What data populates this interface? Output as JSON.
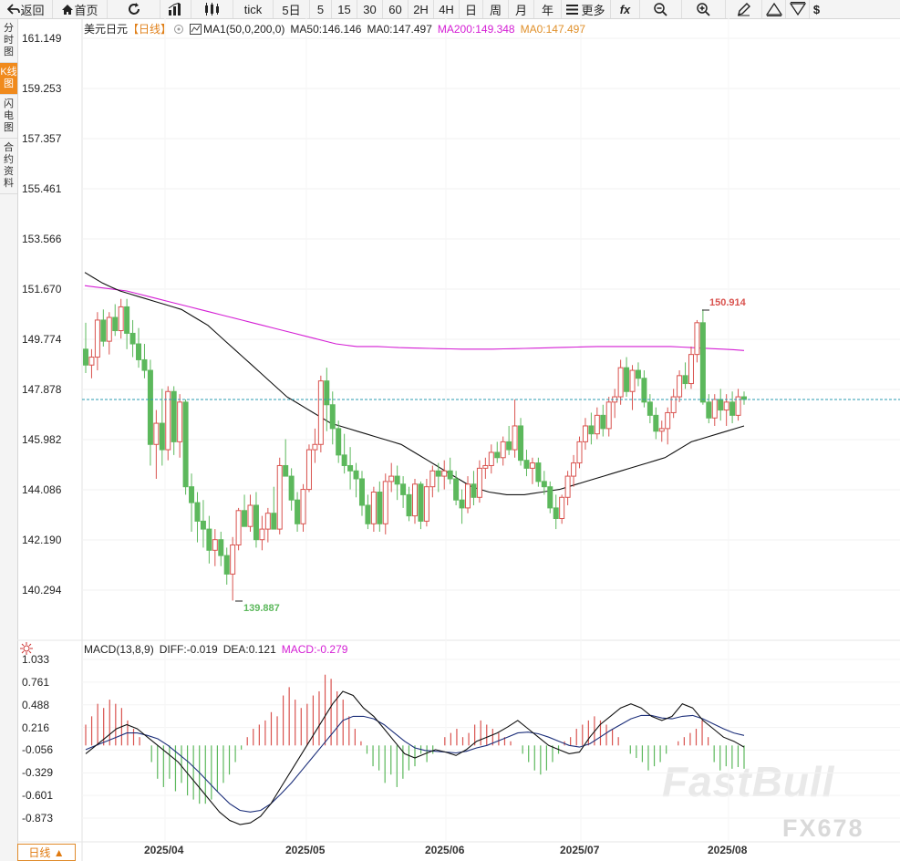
{
  "toolbar": {
    "back": "返回",
    "home": "首页",
    "tick": "tick",
    "day5": "5日",
    "m5": "5",
    "m15": "15",
    "m30": "30",
    "m60": "60",
    "h2": "2H",
    "h4": "4H",
    "day": "日",
    "week": "周",
    "month": "月",
    "year": "年",
    "more": "更多",
    "fx": "fx",
    "dollar": "$"
  },
  "sidebar": {
    "timeshare": "分时图",
    "kline": "K线图",
    "flash": "闪电图",
    "contract": "合约资料"
  },
  "legend": {
    "symbol": "美元日元",
    "period": "【日线】",
    "ma_name": "MA1(50,0,200,0)",
    "ma50": "MA50:146.146",
    "ma0": "MA0:147.497",
    "ma200": "MA200:149.348",
    "ma0b": "MA0:147.497"
  },
  "macd_legend": {
    "name": "MACD(13,8,9)",
    "diff": "DIFF:-0.019",
    "dea": "DEA:0.121",
    "macd": "MACD:-0.279"
  },
  "bottom_tab": "日线 ▲",
  "watermark": "FastBull",
  "watermark2": "FX678",
  "colors": {
    "up": "#d9534f",
    "down": "#5cb85c",
    "ma200": "#d41ed4",
    "ma50": "#111111",
    "active": "#f08a1c"
  },
  "chart_data": [
    {
      "type": "candlestick",
      "title": "美元日元 日线",
      "ylim": [
        139.3,
        161.9
      ],
      "y_ticks": [
        "161.149",
        "159.253",
        "157.357",
        "155.461",
        "153.566",
        "151.670",
        "149.774",
        "147.878",
        "145.982",
        "144.086",
        "142.190",
        "140.294"
      ],
      "x_ticks": [
        "2025/04",
        "2025/05",
        "2025/06",
        "2025/07",
        "2025/08"
      ],
      "high_label": "150.914",
      "low_label": "139.887",
      "current_price": 147.5,
      "candles": [
        {
          "o": 149.4,
          "h": 150.4,
          "l": 148.5,
          "c": 148.8
        },
        {
          "o": 148.8,
          "h": 149.4,
          "l": 148.3,
          "c": 149.1
        },
        {
          "o": 149.1,
          "h": 150.8,
          "l": 148.6,
          "c": 150.5
        },
        {
          "o": 150.5,
          "h": 150.9,
          "l": 149.5,
          "c": 149.7
        },
        {
          "o": 149.7,
          "h": 150.8,
          "l": 149.2,
          "c": 150.6
        },
        {
          "o": 150.6,
          "h": 151.1,
          "l": 149.9,
          "c": 150.1
        },
        {
          "o": 150.1,
          "h": 151.3,
          "l": 149.8,
          "c": 151.0
        },
        {
          "o": 151.0,
          "h": 151.3,
          "l": 149.4,
          "c": 150.0
        },
        {
          "o": 150.0,
          "h": 150.5,
          "l": 149.1,
          "c": 149.6
        },
        {
          "o": 149.6,
          "h": 150.2,
          "l": 148.7,
          "c": 149.0
        },
        {
          "o": 149.0,
          "h": 149.6,
          "l": 148.3,
          "c": 148.6
        },
        {
          "o": 148.6,
          "h": 149.0,
          "l": 145.0,
          "c": 145.8
        },
        {
          "o": 145.8,
          "h": 147.1,
          "l": 144.5,
          "c": 146.6
        },
        {
          "o": 146.6,
          "h": 147.9,
          "l": 145.0,
          "c": 145.6
        },
        {
          "o": 145.6,
          "h": 148.0,
          "l": 145.2,
          "c": 147.8
        },
        {
          "o": 147.8,
          "h": 148.0,
          "l": 145.4,
          "c": 145.9
        },
        {
          "o": 145.9,
          "h": 147.7,
          "l": 145.3,
          "c": 147.4
        },
        {
          "o": 147.4,
          "h": 147.5,
          "l": 143.9,
          "c": 144.2
        },
        {
          "o": 144.2,
          "h": 144.7,
          "l": 142.5,
          "c": 143.6
        },
        {
          "o": 143.6,
          "h": 144.0,
          "l": 142.1,
          "c": 142.9
        },
        {
          "o": 142.9,
          "h": 143.7,
          "l": 141.9,
          "c": 142.6
        },
        {
          "o": 142.6,
          "h": 143.1,
          "l": 141.3,
          "c": 141.8
        },
        {
          "o": 141.8,
          "h": 142.6,
          "l": 141.2,
          "c": 142.2
        },
        {
          "o": 142.2,
          "h": 142.5,
          "l": 141.2,
          "c": 141.6
        },
        {
          "o": 141.6,
          "h": 141.9,
          "l": 140.5,
          "c": 140.9
        },
        {
          "o": 140.9,
          "h": 142.3,
          "l": 139.9,
          "c": 142.0
        },
        {
          "o": 142.0,
          "h": 143.4,
          "l": 141.8,
          "c": 143.3
        },
        {
          "o": 143.3,
          "h": 143.9,
          "l": 142.7,
          "c": 142.7
        },
        {
          "o": 142.7,
          "h": 143.9,
          "l": 142.5,
          "c": 143.5
        },
        {
          "o": 143.5,
          "h": 144.0,
          "l": 141.9,
          "c": 142.2
        },
        {
          "o": 142.2,
          "h": 143.1,
          "l": 141.8,
          "c": 142.6
        },
        {
          "o": 142.6,
          "h": 143.4,
          "l": 142.1,
          "c": 143.2
        },
        {
          "o": 143.2,
          "h": 144.2,
          "l": 142.6,
          "c": 142.6
        },
        {
          "o": 142.6,
          "h": 145.3,
          "l": 142.4,
          "c": 145.0
        },
        {
          "o": 145.0,
          "h": 146.0,
          "l": 144.6,
          "c": 144.6
        },
        {
          "o": 144.6,
          "h": 144.9,
          "l": 143.3,
          "c": 143.7
        },
        {
          "o": 143.7,
          "h": 144.0,
          "l": 142.5,
          "c": 142.8
        },
        {
          "o": 142.8,
          "h": 144.3,
          "l": 142.5,
          "c": 144.1
        },
        {
          "o": 144.1,
          "h": 145.8,
          "l": 144.0,
          "c": 145.6
        },
        {
          "o": 145.6,
          "h": 146.4,
          "l": 145.1,
          "c": 145.8
        },
        {
          "o": 145.8,
          "h": 148.4,
          "l": 145.5,
          "c": 148.2
        },
        {
          "o": 148.2,
          "h": 148.7,
          "l": 146.3,
          "c": 147.3
        },
        {
          "o": 147.3,
          "h": 147.8,
          "l": 145.8,
          "c": 146.4
        },
        {
          "o": 146.4,
          "h": 146.7,
          "l": 145.1,
          "c": 145.4
        },
        {
          "o": 145.4,
          "h": 146.2,
          "l": 144.7,
          "c": 145.0
        },
        {
          "o": 145.0,
          "h": 145.7,
          "l": 144.1,
          "c": 144.8
        },
        {
          "o": 144.8,
          "h": 145.1,
          "l": 143.8,
          "c": 144.5
        },
        {
          "o": 144.5,
          "h": 144.8,
          "l": 143.1,
          "c": 143.5
        },
        {
          "o": 143.5,
          "h": 143.9,
          "l": 142.6,
          "c": 142.8
        },
        {
          "o": 142.8,
          "h": 144.2,
          "l": 142.5,
          "c": 144.0
        },
        {
          "o": 144.0,
          "h": 144.4,
          "l": 142.5,
          "c": 142.8
        },
        {
          "o": 142.8,
          "h": 144.7,
          "l": 142.4,
          "c": 144.4
        },
        {
          "o": 144.4,
          "h": 145.1,
          "l": 144.0,
          "c": 144.6
        },
        {
          "o": 144.6,
          "h": 145.0,
          "l": 143.7,
          "c": 144.3
        },
        {
          "o": 144.3,
          "h": 144.6,
          "l": 143.4,
          "c": 143.9
        },
        {
          "o": 143.9,
          "h": 144.2,
          "l": 142.9,
          "c": 143.1
        },
        {
          "o": 143.1,
          "h": 144.5,
          "l": 142.8,
          "c": 144.3
        },
        {
          "o": 144.3,
          "h": 144.4,
          "l": 142.6,
          "c": 142.9
        },
        {
          "o": 142.9,
          "h": 144.5,
          "l": 142.7,
          "c": 144.2
        },
        {
          "o": 144.2,
          "h": 145.0,
          "l": 143.8,
          "c": 144.8
        },
        {
          "o": 144.8,
          "h": 145.1,
          "l": 144.0,
          "c": 144.6
        },
        {
          "o": 144.6,
          "h": 145.2,
          "l": 144.1,
          "c": 144.8
        },
        {
          "o": 144.8,
          "h": 145.3,
          "l": 144.3,
          "c": 144.5
        },
        {
          "o": 144.5,
          "h": 144.8,
          "l": 143.5,
          "c": 143.7
        },
        {
          "o": 143.7,
          "h": 144.1,
          "l": 142.8,
          "c": 143.4
        },
        {
          "o": 143.4,
          "h": 144.6,
          "l": 143.2,
          "c": 144.3
        },
        {
          "o": 144.3,
          "h": 144.8,
          "l": 143.5,
          "c": 143.8
        },
        {
          "o": 143.8,
          "h": 145.2,
          "l": 143.6,
          "c": 144.9
        },
        {
          "o": 144.9,
          "h": 145.3,
          "l": 144.5,
          "c": 145.0
        },
        {
          "o": 145.0,
          "h": 145.8,
          "l": 144.7,
          "c": 145.5
        },
        {
          "o": 145.5,
          "h": 145.9,
          "l": 145.1,
          "c": 145.3
        },
        {
          "o": 145.3,
          "h": 146.1,
          "l": 145.0,
          "c": 145.9
        },
        {
          "o": 145.9,
          "h": 146.5,
          "l": 145.4,
          "c": 145.6
        },
        {
          "o": 145.6,
          "h": 147.5,
          "l": 145.3,
          "c": 146.5
        },
        {
          "o": 146.5,
          "h": 146.8,
          "l": 145.0,
          "c": 145.2
        },
        {
          "o": 145.2,
          "h": 145.6,
          "l": 144.6,
          "c": 144.9
        },
        {
          "o": 144.9,
          "h": 145.3,
          "l": 144.3,
          "c": 145.1
        },
        {
          "o": 145.1,
          "h": 145.3,
          "l": 144.2,
          "c": 144.4
        },
        {
          "o": 144.4,
          "h": 144.8,
          "l": 143.9,
          "c": 144.2
        },
        {
          "o": 144.2,
          "h": 144.4,
          "l": 143.2,
          "c": 143.4
        },
        {
          "o": 143.4,
          "h": 143.9,
          "l": 142.6,
          "c": 143.0
        },
        {
          "o": 143.0,
          "h": 143.9,
          "l": 142.8,
          "c": 143.8
        },
        {
          "o": 143.8,
          "h": 144.8,
          "l": 143.5,
          "c": 144.6
        },
        {
          "o": 144.6,
          "h": 145.4,
          "l": 144.2,
          "c": 145.1
        },
        {
          "o": 145.1,
          "h": 146.1,
          "l": 144.9,
          "c": 145.9
        },
        {
          "o": 145.9,
          "h": 146.8,
          "l": 145.6,
          "c": 146.5
        },
        {
          "o": 146.5,
          "h": 147.0,
          "l": 145.8,
          "c": 146.2
        },
        {
          "o": 146.2,
          "h": 147.2,
          "l": 146.0,
          "c": 146.9
        },
        {
          "o": 146.9,
          "h": 147.3,
          "l": 146.1,
          "c": 146.4
        },
        {
          "o": 146.4,
          "h": 147.6,
          "l": 146.1,
          "c": 147.4
        },
        {
          "o": 147.4,
          "h": 147.9,
          "l": 146.8,
          "c": 147.6
        },
        {
          "o": 147.6,
          "h": 149.0,
          "l": 147.3,
          "c": 148.7
        },
        {
          "o": 148.7,
          "h": 149.1,
          "l": 147.6,
          "c": 147.8
        },
        {
          "o": 147.8,
          "h": 148.8,
          "l": 147.1,
          "c": 148.6
        },
        {
          "o": 148.6,
          "h": 148.9,
          "l": 148.0,
          "c": 148.3
        },
        {
          "o": 148.3,
          "h": 148.6,
          "l": 147.2,
          "c": 147.4
        },
        {
          "o": 147.4,
          "h": 147.7,
          "l": 146.6,
          "c": 146.9
        },
        {
          "o": 146.9,
          "h": 147.2,
          "l": 146.0,
          "c": 146.3
        },
        {
          "o": 146.3,
          "h": 146.7,
          "l": 145.9,
          "c": 146.4
        },
        {
          "o": 146.4,
          "h": 147.2,
          "l": 145.8,
          "c": 147.0
        },
        {
          "o": 147.0,
          "h": 147.9,
          "l": 146.8,
          "c": 147.6
        },
        {
          "o": 147.6,
          "h": 148.6,
          "l": 147.4,
          "c": 148.4
        },
        {
          "o": 148.4,
          "h": 148.9,
          "l": 147.9,
          "c": 148.1
        },
        {
          "o": 148.1,
          "h": 149.5,
          "l": 147.9,
          "c": 149.2
        },
        {
          "o": 149.2,
          "h": 150.5,
          "l": 148.9,
          "c": 150.4
        },
        {
          "o": 150.4,
          "h": 150.9,
          "l": 147.3,
          "c": 147.4
        },
        {
          "o": 147.4,
          "h": 147.7,
          "l": 146.6,
          "c": 146.8
        },
        {
          "o": 146.8,
          "h": 147.7,
          "l": 146.5,
          "c": 147.5
        },
        {
          "o": 147.5,
          "h": 147.9,
          "l": 146.7,
          "c": 147.1
        },
        {
          "o": 147.1,
          "h": 147.7,
          "l": 146.5,
          "c": 147.4
        },
        {
          "o": 147.4,
          "h": 147.8,
          "l": 146.6,
          "c": 146.9
        },
        {
          "o": 146.9,
          "h": 147.9,
          "l": 146.7,
          "c": 147.6
        },
        {
          "o": 147.6,
          "h": 147.8,
          "l": 147.3,
          "c": 147.5
        }
      ],
      "ma50": [
        152.3,
        152.1,
        151.9,
        151.75,
        151.6,
        151.5,
        151.4,
        151.3,
        151.2,
        151.1,
        151.0,
        150.9,
        150.7,
        150.5,
        150.3,
        150.0,
        149.7,
        149.4,
        149.1,
        148.8,
        148.5,
        148.2,
        147.9,
        147.6,
        147.4,
        147.2,
        147.0,
        146.8,
        146.6,
        146.5,
        146.4,
        146.3,
        146.2,
        146.1,
        146.0,
        145.9,
        145.8,
        145.6,
        145.4,
        145.2,
        145.0,
        144.8,
        144.6,
        144.4,
        144.2,
        144.1,
        144.0,
        143.95,
        143.9,
        143.9,
        143.9,
        143.95,
        144.0,
        144.05,
        144.1,
        144.2,
        144.3,
        144.4,
        144.5,
        144.6,
        144.7,
        144.8,
        144.9,
        145.0,
        145.1,
        145.2,
        145.3,
        145.5,
        145.7,
        145.9,
        146.0,
        146.1,
        146.2,
        146.3,
        146.4,
        146.5
      ],
      "ma200": [
        151.8,
        151.75,
        151.7,
        151.65,
        151.6,
        151.5,
        151.4,
        151.3,
        151.2,
        151.1,
        151.0,
        150.9,
        150.8,
        150.7,
        150.6,
        150.5,
        150.4,
        150.3,
        150.2,
        150.1,
        150.0,
        149.9,
        149.8,
        149.7,
        149.6,
        149.55,
        149.5,
        149.5,
        149.5,
        149.48,
        149.46,
        149.45,
        149.44,
        149.43,
        149.42,
        149.41,
        149.4,
        149.4,
        149.4,
        149.4,
        149.41,
        149.42,
        149.43,
        149.44,
        149.45,
        149.46,
        149.47,
        149.48,
        149.49,
        149.5,
        149.5,
        149.5,
        149.5,
        149.5,
        149.5,
        149.5,
        149.5,
        149.48,
        149.46,
        149.44,
        149.42,
        149.4,
        149.38,
        149.35
      ]
    },
    {
      "type": "bar+line",
      "title": "MACD(13,8,9)",
      "ylim": [
        -1.05,
        1.1
      ],
      "y_ticks": [
        "1.033",
        "0.761",
        "0.488",
        "0.216",
        "-0.056",
        "-0.329",
        "-0.601",
        "-0.873"
      ],
      "histogram": [
        0.25,
        0.35,
        0.5,
        0.45,
        0.55,
        0.5,
        0.45,
        0.3,
        0.2,
        0.1,
        0.0,
        -0.2,
        -0.4,
        -0.5,
        -0.4,
        -0.55,
        -0.45,
        -0.6,
        -0.65,
        -0.7,
        -0.7,
        -0.65,
        -0.55,
        -0.45,
        -0.35,
        -0.2,
        -0.05,
        0.1,
        0.2,
        0.25,
        0.3,
        0.4,
        0.35,
        0.6,
        0.7,
        0.55,
        0.45,
        0.5,
        0.6,
        0.65,
        0.85,
        0.8,
        0.65,
        0.55,
        0.35,
        0.2,
        0.05,
        -0.1,
        -0.25,
        -0.3,
        -0.45,
        -0.35,
        -0.5,
        -0.4,
        -0.3,
        -0.25,
        -0.1,
        -0.2,
        -0.1,
        0.0,
        0.1,
        0.15,
        0.2,
        0.1,
        0.15,
        0.25,
        0.3,
        0.25,
        0.2,
        0.15,
        0.1,
        0.05,
        0.0,
        -0.1,
        -0.2,
        -0.3,
        -0.35,
        -0.3,
        -0.2,
        -0.1,
        0.05,
        0.1,
        0.2,
        0.25,
        0.3,
        0.35,
        0.3,
        0.25,
        0.2,
        0.1,
        0.0,
        -0.1,
        -0.15,
        -0.2,
        -0.3,
        -0.25,
        -0.2,
        -0.1,
        0.0,
        0.05,
        0.1,
        0.15,
        0.2,
        0.3,
        0.1,
        -0.2,
        -0.3,
        -0.25,
        -0.28,
        -0.26,
        -0.28
      ],
      "diff": [
        -0.1,
        0.0,
        0.1,
        0.2,
        0.25,
        0.2,
        0.1,
        0.0,
        -0.1,
        -0.2,
        -0.35,
        -0.5,
        -0.65,
        -0.8,
        -0.9,
        -0.95,
        -0.93,
        -0.85,
        -0.7,
        -0.5,
        -0.3,
        -0.1,
        0.1,
        0.3,
        0.5,
        0.65,
        0.6,
        0.45,
        0.35,
        0.2,
        0.05,
        -0.1,
        -0.15,
        -0.1,
        -0.05,
        -0.08,
        -0.12,
        -0.05,
        0.05,
        0.1,
        0.15,
        0.22,
        0.3,
        0.2,
        0.1,
        0.0,
        -0.05,
        -0.1,
        -0.08,
        0.1,
        0.25,
        0.35,
        0.45,
        0.5,
        0.45,
        0.35,
        0.3,
        0.35,
        0.5,
        0.45,
        0.3,
        0.2,
        0.1,
        0.05,
        -0.02
      ],
      "dea": [
        -0.05,
        0.0,
        0.05,
        0.1,
        0.15,
        0.15,
        0.12,
        0.08,
        0.0,
        -0.1,
        -0.2,
        -0.32,
        -0.45,
        -0.58,
        -0.7,
        -0.78,
        -0.8,
        -0.78,
        -0.7,
        -0.58,
        -0.45,
        -0.3,
        -0.15,
        0.0,
        0.15,
        0.3,
        0.35,
        0.35,
        0.32,
        0.25,
        0.15,
        0.05,
        -0.03,
        -0.06,
        -0.07,
        -0.08,
        -0.09,
        -0.07,
        -0.03,
        0.0,
        0.05,
        0.1,
        0.15,
        0.16,
        0.14,
        0.1,
        0.05,
        0.0,
        -0.02,
        0.02,
        0.1,
        0.18,
        0.25,
        0.32,
        0.36,
        0.36,
        0.33,
        0.32,
        0.35,
        0.36,
        0.32,
        0.26,
        0.2,
        0.15,
        0.12
      ]
    }
  ]
}
